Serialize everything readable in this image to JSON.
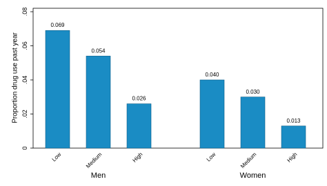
{
  "chart_data": {
    "type": "bar",
    "ylabel": "Proportion drug use past year",
    "color": "#1a8cc4",
    "ylim": [
      0,
      0.08
    ],
    "yticks": [
      0,
      {
        "value": 0.02,
        "label": ".02"
      },
      {
        "value": 0.04,
        "label": ".04"
      },
      {
        "value": 0.06,
        "label": ".06"
      },
      {
        "value": 0.08,
        "label": ".08"
      }
    ],
    "groups": [
      {
        "name": "Men",
        "categories": [
          "Low",
          "Medium",
          "High"
        ],
        "values": [
          0.069,
          0.054,
          0.026
        ],
        "value_labels": [
          "0.069",
          "0.054",
          "0.026"
        ]
      },
      {
        "name": "Women",
        "categories": [
          "Low",
          "Medium",
          "High"
        ],
        "values": [
          0.04,
          0.03,
          0.013
        ],
        "value_labels": [
          "0.040",
          "0.030",
          "0.013"
        ]
      }
    ]
  }
}
